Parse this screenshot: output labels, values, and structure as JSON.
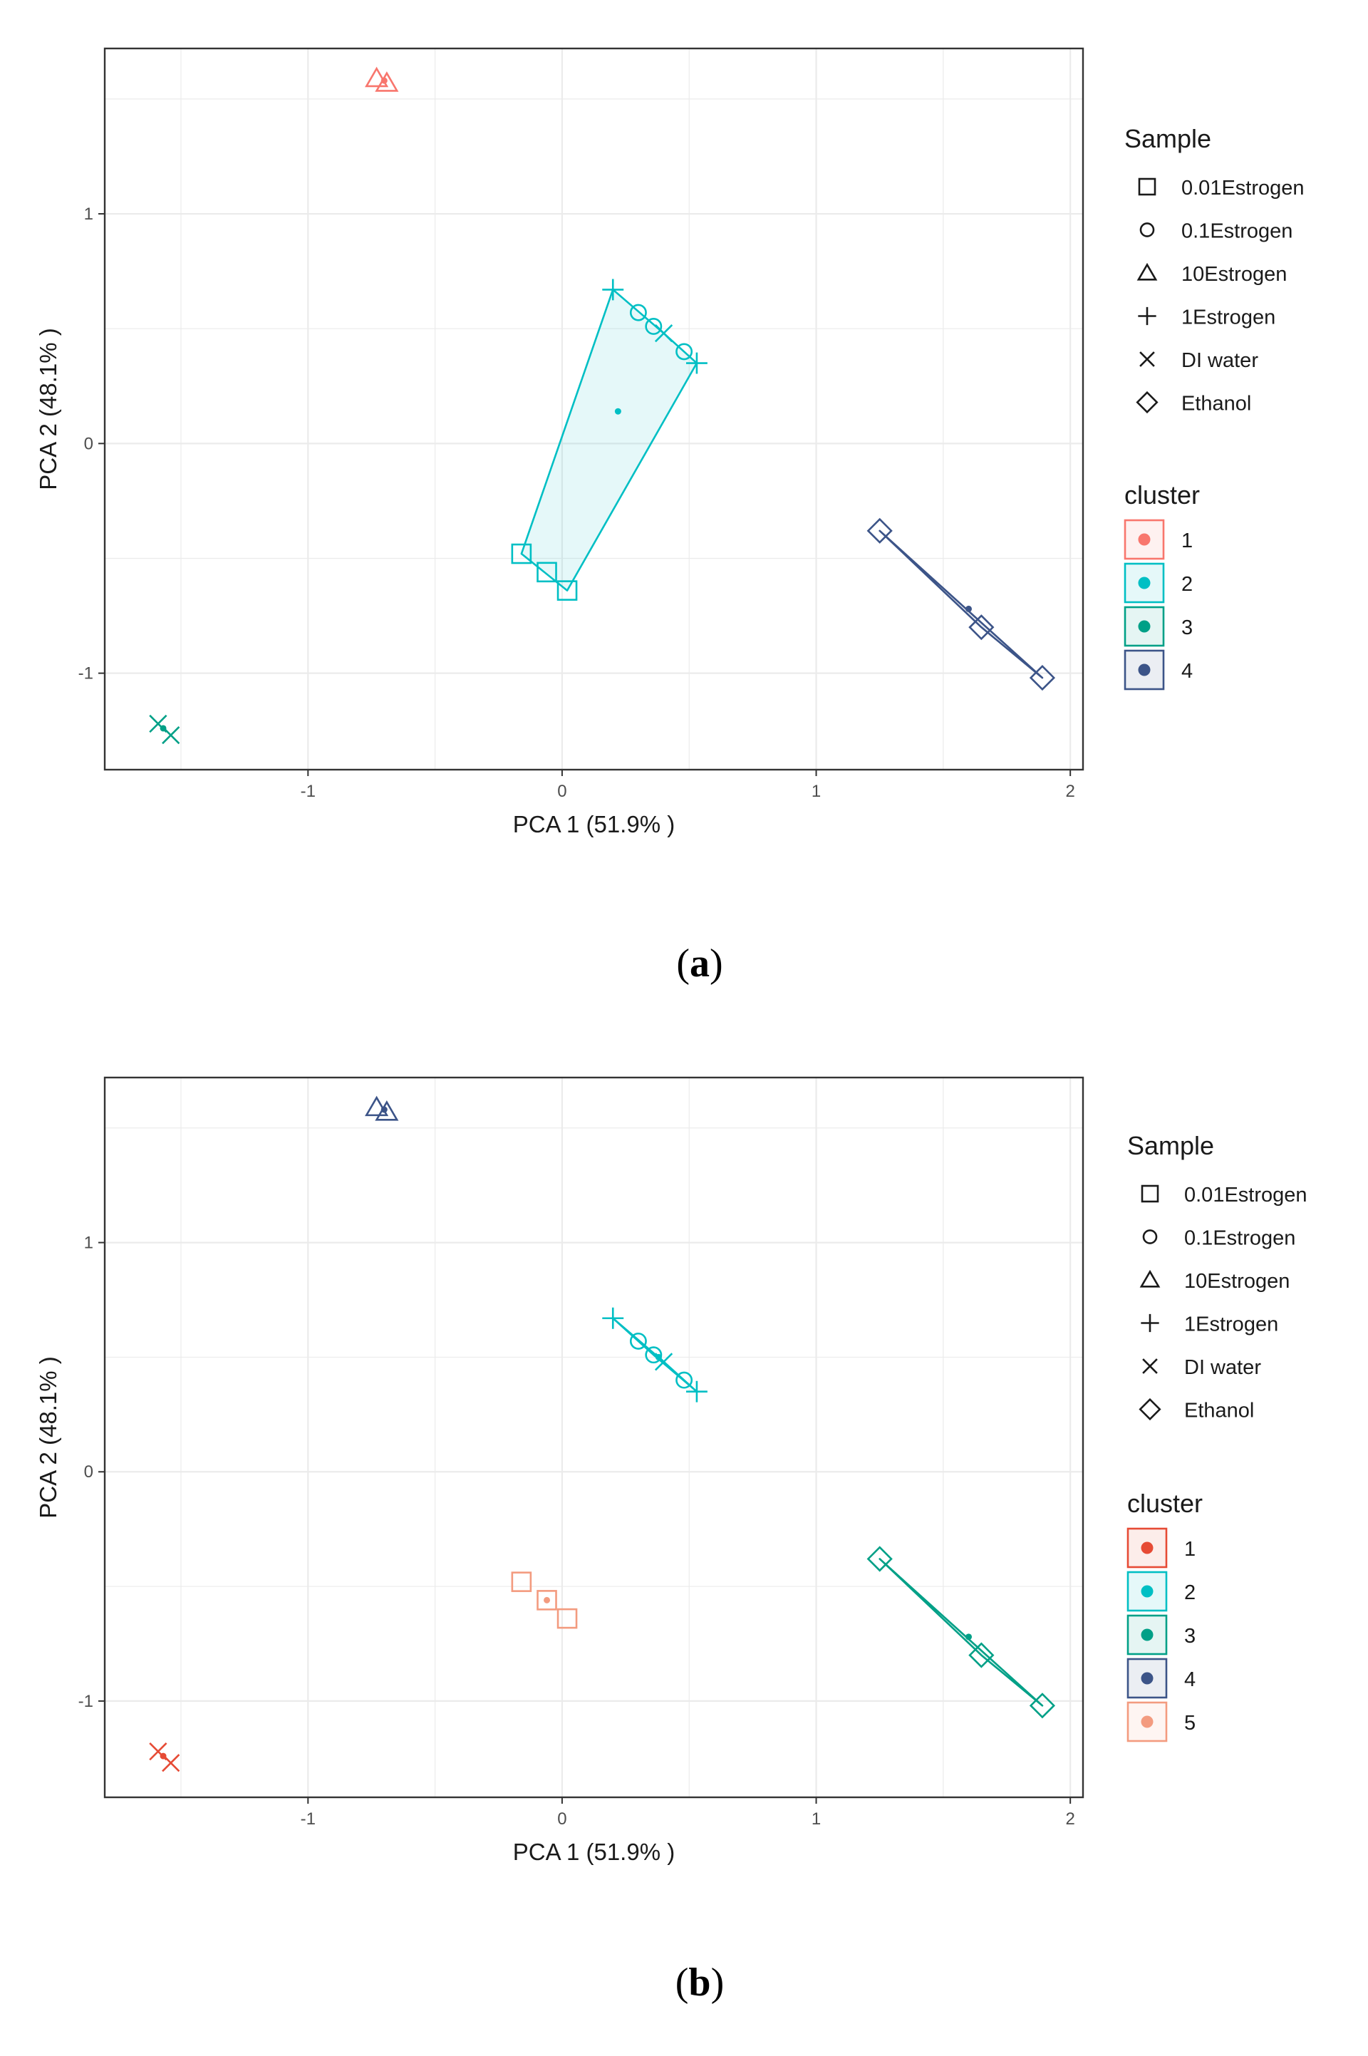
{
  "chart_data": [
    {
      "type": "scatter",
      "panel_label": "a",
      "title": "",
      "xlabel": "PCA 1 (51.9% )",
      "ylabel": "PCA 2 (48.1% )",
      "xlim": [
        -1.8,
        2.05
      ],
      "ylim": [
        -1.42,
        1.72
      ],
      "xticks": [
        -1,
        0,
        1,
        2
      ],
      "yticks": [
        -1,
        0,
        1
      ],
      "grid": true,
      "shape_legend": {
        "title": "Sample",
        "entries": [
          {
            "label": "0.01Estrogen",
            "shape": "square"
          },
          {
            "label": "0.1Estrogen",
            "shape": "circle"
          },
          {
            "label": "10Estrogen",
            "shape": "triangle"
          },
          {
            "label": "1Estrogen",
            "shape": "plus"
          },
          {
            "label": "DI water",
            "shape": "cross"
          },
          {
            "label": "Ethanol",
            "shape": "diamond"
          }
        ]
      },
      "cluster_legend": {
        "title": "cluster",
        "entries": [
          {
            "label": "1",
            "color": "#F8766D"
          },
          {
            "label": "2",
            "color": "#00BFC4"
          },
          {
            "label": "3",
            "color": "#00A087"
          },
          {
            "label": "4",
            "color": "#3C5488"
          }
        ]
      },
      "clusters": [
        {
          "name": "1",
          "color": "#F8766D",
          "hull": false,
          "center": [
            -0.7,
            1.58
          ],
          "points": [
            {
              "sample": "10Estrogen",
              "x": -0.73,
              "y": 1.59
            },
            {
              "sample": "10Estrogen",
              "x": -0.69,
              "y": 1.57
            }
          ]
        },
        {
          "name": "2",
          "color": "#00BFC4",
          "hull": true,
          "center": [
            0.22,
            0.14
          ],
          "points": [
            {
              "sample": "1Estrogen",
              "x": 0.2,
              "y": 0.67
            },
            {
              "sample": "0.1Estrogen",
              "x": 0.3,
              "y": 0.57
            },
            {
              "sample": "0.1Estrogen",
              "x": 0.36,
              "y": 0.51
            },
            {
              "sample": "DI water",
              "x": 0.4,
              "y": 0.48
            },
            {
              "sample": "0.1Estrogen",
              "x": 0.48,
              "y": 0.4
            },
            {
              "sample": "1Estrogen",
              "x": 0.53,
              "y": 0.35
            },
            {
              "sample": "0.01Estrogen",
              "x": -0.16,
              "y": -0.48
            },
            {
              "sample": "0.01Estrogen",
              "x": -0.06,
              "y": -0.56
            },
            {
              "sample": "0.01Estrogen",
              "x": 0.02,
              "y": -0.64
            }
          ]
        },
        {
          "name": "3",
          "color": "#00A087",
          "hull": false,
          "center": [
            -1.57,
            -1.24
          ],
          "points": [
            {
              "sample": "DI water",
              "x": -1.59,
              "y": -1.22
            },
            {
              "sample": "DI water",
              "x": -1.54,
              "y": -1.27
            }
          ]
        },
        {
          "name": "4",
          "color": "#3C5488",
          "hull": true,
          "center": [
            1.6,
            -0.72
          ],
          "points": [
            {
              "sample": "Ethanol",
              "x": 1.25,
              "y": -0.38
            },
            {
              "sample": "Ethanol",
              "x": 1.65,
              "y": -0.8
            },
            {
              "sample": "Ethanol",
              "x": 1.89,
              "y": -1.02
            }
          ]
        }
      ]
    },
    {
      "type": "scatter",
      "panel_label": "b",
      "title": "",
      "xlabel": "PCA 1 (51.9% )",
      "ylabel": "PCA 2 (48.1% )",
      "xlim": [
        -1.8,
        2.05
      ],
      "ylim": [
        -1.42,
        1.72
      ],
      "xticks": [
        -1,
        0,
        1,
        2
      ],
      "yticks": [
        -1,
        0,
        1
      ],
      "grid": true,
      "shape_legend": {
        "title": "Sample",
        "entries": [
          {
            "label": "0.01Estrogen",
            "shape": "square"
          },
          {
            "label": "0.1Estrogen",
            "shape": "circle"
          },
          {
            "label": "10Estrogen",
            "shape": "triangle"
          },
          {
            "label": "1Estrogen",
            "shape": "plus"
          },
          {
            "label": "DI water",
            "shape": "cross"
          },
          {
            "label": "Ethanol",
            "shape": "diamond"
          }
        ]
      },
      "cluster_legend": {
        "title": "cluster",
        "entries": [
          {
            "label": "1",
            "color": "#E64B35"
          },
          {
            "label": "2",
            "color": "#00BFC4"
          },
          {
            "label": "3",
            "color": "#00A087"
          },
          {
            "label": "4",
            "color": "#3C5488"
          },
          {
            "label": "5",
            "color": "#F39B7F"
          }
        ]
      },
      "clusters": [
        {
          "name": "1",
          "color": "#E64B35",
          "hull": false,
          "center": [
            -1.57,
            -1.24
          ],
          "points": [
            {
              "sample": "DI water",
              "x": -1.59,
              "y": -1.22
            },
            {
              "sample": "DI water",
              "x": -1.54,
              "y": -1.27
            }
          ]
        },
        {
          "name": "2",
          "color": "#00BFC4",
          "hull": true,
          "center": [
            0.38,
            0.5
          ],
          "points": [
            {
              "sample": "1Estrogen",
              "x": 0.2,
              "y": 0.67
            },
            {
              "sample": "0.1Estrogen",
              "x": 0.3,
              "y": 0.57
            },
            {
              "sample": "0.1Estrogen",
              "x": 0.36,
              "y": 0.51
            },
            {
              "sample": "DI water",
              "x": 0.4,
              "y": 0.48
            },
            {
              "sample": "0.1Estrogen",
              "x": 0.48,
              "y": 0.4
            },
            {
              "sample": "1Estrogen",
              "x": 0.53,
              "y": 0.35
            }
          ]
        },
        {
          "name": "3",
          "color": "#00A087",
          "hull": true,
          "center": [
            1.6,
            -0.72
          ],
          "points": [
            {
              "sample": "Ethanol",
              "x": 1.25,
              "y": -0.38
            },
            {
              "sample": "Ethanol",
              "x": 1.65,
              "y": -0.8
            },
            {
              "sample": "Ethanol",
              "x": 1.89,
              "y": -1.02
            }
          ]
        },
        {
          "name": "4",
          "color": "#3C5488",
          "hull": false,
          "center": [
            -0.7,
            1.58
          ],
          "points": [
            {
              "sample": "10Estrogen",
              "x": -0.73,
              "y": 1.59
            },
            {
              "sample": "10Estrogen",
              "x": -0.69,
              "y": 1.57
            }
          ]
        },
        {
          "name": "5",
          "color": "#F39B7F",
          "hull": false,
          "center": [
            -0.06,
            -0.56
          ],
          "points": [
            {
              "sample": "0.01Estrogen",
              "x": -0.16,
              "y": -0.48
            },
            {
              "sample": "0.01Estrogen",
              "x": -0.06,
              "y": -0.56
            },
            {
              "sample": "0.01Estrogen",
              "x": 0.02,
              "y": -0.64
            }
          ]
        }
      ]
    }
  ]
}
